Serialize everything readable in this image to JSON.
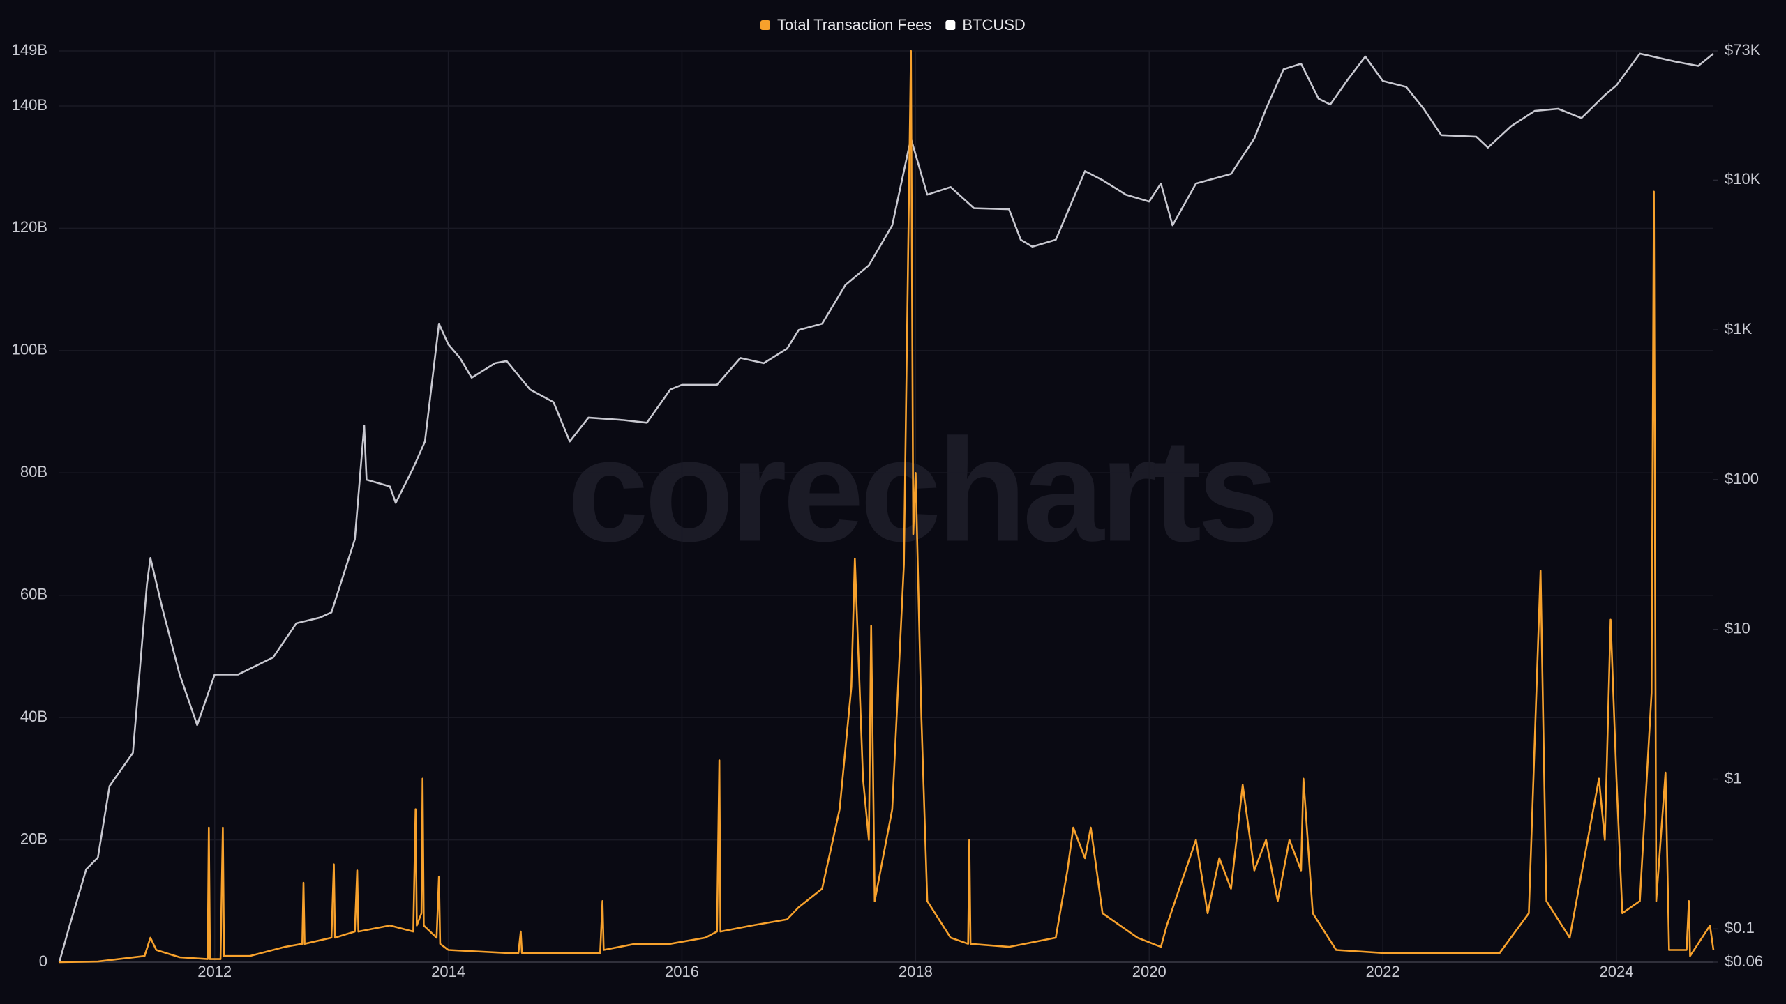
{
  "chart_data": {
    "type": "line",
    "watermark": "corecharts",
    "xlim": [
      2010.67,
      2024.83
    ],
    "xticks": [
      2012,
      2014,
      2016,
      2018,
      2020,
      2022,
      2024
    ],
    "ylim": [
      0,
      149000000000.0
    ],
    "yticks": [
      0,
      {
        "value": 20000000000.0,
        "label": "20B"
      },
      {
        "value": 40000000000.0,
        "label": "40B"
      },
      {
        "value": 60000000000.0,
        "label": "60B"
      },
      {
        "value": 80000000000.0,
        "label": "80B"
      },
      {
        "value": 100000000000.0,
        "label": "100B"
      },
      {
        "value": 120000000000.0,
        "label": "120B"
      },
      {
        "value": 140000000000.0,
        "label": "140B"
      },
      {
        "value": 149000000000.0,
        "label": "149B"
      }
    ],
    "y2lim": [
      0.06,
      73000
    ],
    "y2log": true,
    "y2ticks": [
      {
        "value": 0.06,
        "label": "$0.06"
      },
      {
        "value": 0.1,
        "label": "$0.1"
      },
      {
        "value": 1,
        "label": "$1"
      },
      {
        "value": 10,
        "label": "$10"
      },
      {
        "value": 100,
        "label": "$100"
      },
      {
        "value": 1000,
        "label": "$1K"
      },
      {
        "value": 10000,
        "label": "$10K"
      },
      {
        "value": 73000,
        "label": "$73K"
      }
    ],
    "grid": true,
    "legend": "top",
    "series": [
      {
        "name": "Total Transaction Fees",
        "color": "#f7a12c",
        "x": [
          2010.67,
          2011.0,
          2011.4,
          2011.45,
          2011.5,
          2011.7,
          2011.94,
          2011.95,
          2011.96,
          2012.05,
          2012.07,
          2012.08,
          2012.3,
          2012.6,
          2012.75,
          2012.76,
          2012.77,
          2013.0,
          2013.02,
          2013.03,
          2013.2,
          2013.22,
          2013.23,
          2013.5,
          2013.7,
          2013.72,
          2013.73,
          2013.77,
          2013.78,
          2013.79,
          2013.9,
          2013.92,
          2013.93,
          2014.0,
          2014.5,
          2014.6,
          2014.62,
          2014.63,
          2015.0,
          2015.3,
          2015.32,
          2015.33,
          2015.6,
          2015.9,
          2016.2,
          2016.3,
          2016.32,
          2016.33,
          2016.6,
          2016.9,
          2017.0,
          2017.2,
          2017.35,
          2017.45,
          2017.48,
          2017.55,
          2017.6,
          2017.62,
          2017.65,
          2017.8,
          2017.9,
          2017.96,
          2017.98,
          2018.0,
          2018.05,
          2018.1,
          2018.3,
          2018.45,
          2018.46,
          2018.47,
          2018.8,
          2019.2,
          2019.3,
          2019.35,
          2019.45,
          2019.5,
          2019.6,
          2019.9,
          2020.1,
          2020.15,
          2020.4,
          2020.5,
          2020.6,
          2020.7,
          2020.8,
          2020.9,
          2021.0,
          2021.1,
          2021.2,
          2021.3,
          2021.32,
          2021.4,
          2021.6,
          2022.0,
          2022.5,
          2023.0,
          2023.25,
          2023.35,
          2023.4,
          2023.6,
          2023.85,
          2023.9,
          2023.95,
          2024.0,
          2024.05,
          2024.2,
          2024.3,
          2024.32,
          2024.34,
          2024.42,
          2024.45,
          2024.6,
          2024.62,
          2024.63,
          2024.8,
          2024.83
        ],
        "values": [
          0,
          100000000.0,
          1000000000.0,
          4000000000.0,
          2000000000.0,
          800000000.0,
          500000000.0,
          22000000000.0,
          500000000.0,
          500000000.0,
          22000000000.0,
          1000000000.0,
          1000000000.0,
          2500000000.0,
          3000000000.0,
          13000000000.0,
          3000000000.0,
          4000000000.0,
          16000000000.0,
          4000000000.0,
          5000000000.0,
          15000000000.0,
          5000000000.0,
          6000000000.0,
          5000000000.0,
          25000000000.0,
          6000000000.0,
          8000000000.0,
          30000000000.0,
          6000000000.0,
          4000000000.0,
          14000000000.0,
          3000000000.0,
          2000000000.0,
          1500000000.0,
          1500000000.0,
          5000000000.0,
          1500000000.0,
          1500000000.0,
          1500000000.0,
          10000000000.0,
          2000000000.0,
          3000000000.0,
          3000000000.0,
          4000000000.0,
          5000000000.0,
          33000000000.0,
          5000000000.0,
          6000000000.0,
          7000000000.0,
          9000000000.0,
          12000000000.0,
          25000000000.0,
          45000000000.0,
          66000000000.0,
          30000000000.0,
          20000000000.0,
          55000000000.0,
          10000000000.0,
          25000000000.0,
          65000000000.0,
          149000000000.0,
          70000000000.0,
          80000000000.0,
          40000000000.0,
          10000000000.0,
          4000000000.0,
          3000000000.0,
          20000000000.0,
          3000000000.0,
          2500000000.0,
          4000000000.0,
          15000000000.0,
          22000000000.0,
          17000000000.0,
          22000000000.0,
          8000000000.0,
          4000000000.0,
          2500000000.0,
          6000000000.0,
          20000000000.0,
          8000000000.0,
          17000000000.0,
          12000000000.0,
          29000000000.0,
          15000000000.0,
          20000000000.0,
          10000000000.0,
          20000000000.0,
          15000000000.0,
          30000000000.0,
          8000000000.0,
          2000000000.0,
          1500000000.0,
          1500000000.0,
          1500000000.0,
          8000000000.0,
          64000000000.0,
          10000000000.0,
          4000000000.0,
          30000000000.0,
          20000000000.0,
          56000000000.0,
          30000000000.0,
          8000000000.0,
          10000000000.0,
          44000000000.0,
          126000000000.0,
          10000000000.0,
          31000000000.0,
          2000000000.0,
          2000000000.0,
          10000000000.0,
          1000000000.0,
          6000000000.0,
          2000000000.0
        ]
      },
      {
        "name": "BTCUSD",
        "color": "#c8c8d0",
        "axis": "y2",
        "x": [
          2010.67,
          2010.75,
          2010.9,
          2011.0,
          2011.1,
          2011.3,
          2011.42,
          2011.45,
          2011.55,
          2011.7,
          2011.85,
          2012.0,
          2012.2,
          2012.5,
          2012.7,
          2012.9,
          2013.0,
          2013.2,
          2013.28,
          2013.3,
          2013.5,
          2013.55,
          2013.7,
          2013.8,
          2013.92,
          2014.0,
          2014.1,
          2014.2,
          2014.4,
          2014.5,
          2014.7,
          2014.9,
          2015.04,
          2015.2,
          2015.5,
          2015.7,
          2015.9,
          2016.0,
          2016.3,
          2016.5,
          2016.7,
          2016.9,
          2017.0,
          2017.2,
          2017.4,
          2017.6,
          2017.8,
          2017.96,
          2018.1,
          2018.3,
          2018.5,
          2018.8,
          2018.9,
          2019.0,
          2019.2,
          2019.45,
          2019.6,
          2019.8,
          2020.0,
          2020.1,
          2020.2,
          2020.4,
          2020.7,
          2020.9,
          2021.0,
          2021.15,
          2021.3,
          2021.45,
          2021.55,
          2021.7,
          2021.85,
          2022.0,
          2022.2,
          2022.35,
          2022.5,
          2022.8,
          2022.9,
          2023.1,
          2023.3,
          2023.5,
          2023.7,
          2023.9,
          2024.0,
          2024.2,
          2024.5,
          2024.7,
          2024.83
        ],
        "values": [
          0.06,
          0.1,
          0.25,
          0.3,
          0.9,
          1.5,
          20,
          30,
          14,
          5,
          2.3,
          5,
          5,
          6.5,
          11,
          12,
          13,
          40,
          230,
          100,
          90,
          70,
          120,
          180,
          1100,
          800,
          650,
          480,
          600,
          620,
          400,
          330,
          180,
          260,
          250,
          240,
          400,
          430,
          430,
          650,
          600,
          750,
          1000,
          1100,
          2000,
          2700,
          5000,
          19000,
          8000,
          9000,
          6500,
          6400,
          4000,
          3600,
          4000,
          11500,
          10000,
          8000,
          7200,
          9500,
          5000,
          9500,
          11000,
          19000,
          30000,
          55000,
          60000,
          35000,
          32000,
          47000,
          67000,
          46000,
          42000,
          30000,
          20000,
          19500,
          16500,
          23000,
          29000,
          30000,
          26000,
          37000,
          43000,
          70000,
          62000,
          58000,
          70000
        ]
      }
    ]
  }
}
